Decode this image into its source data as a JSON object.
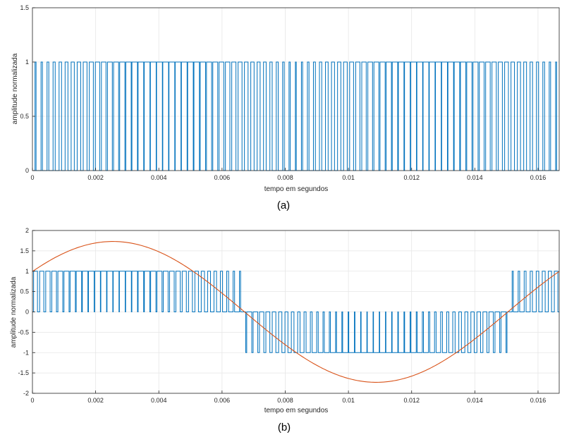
{
  "chart_data": [
    {
      "type": "line",
      "caption": "(a)",
      "xlabel": "tempo em segundos",
      "ylabel": "amplitude normalizada",
      "xlim": [
        0,
        0.01667
      ],
      "ylim": [
        0,
        1.5
      ],
      "xticks": [
        "0",
        "0.002",
        "0.004",
        "0.006",
        "0.008",
        "0.01",
        "0.012",
        "0.014",
        "0.016"
      ],
      "yticks": [
        "0",
        "0.5",
        "1",
        "1.5"
      ],
      "grid": true,
      "series": [
        {
          "kind": "unipolar PWM pulse train (0/1)",
          "color": "#0072BD",
          "carrier_periods": 85,
          "waveform": "0 to 1 pulses whose duty cycle follows |sin(2π·60·t)|"
        }
      ]
    },
    {
      "type": "line",
      "caption": "(b)",
      "xlabel": "tempo em segundos",
      "ylabel": "amplitude normalizada",
      "xlim": [
        0,
        0.01667
      ],
      "ylim": [
        -2,
        2
      ],
      "xticks": [
        "0",
        "0.002",
        "0.004",
        "0.006",
        "0.008",
        "0.01",
        "0.012",
        "0.014",
        "0.016"
      ],
      "yticks": [
        "-2",
        "-1.5",
        "-1",
        "-0.5",
        "0",
        "0.5",
        "1",
        "1.5",
        "2"
      ],
      "grid": true,
      "series": [
        {
          "kind": "bipolar PWM pulse train (0/±1)",
          "color": "#0072BD",
          "carrier_periods": 85,
          "waveform": "pulses to +1 for positive half-cycle, to -1 for negative half-cycle"
        },
        {
          "kind": "reference sine",
          "color": "#D95319",
          "amplitude": 1.73,
          "frequency_hz": 60,
          "phase_deg": 35,
          "x": [
            0,
            0.0028,
            0.0069,
            0.0111,
            0.0153,
            0.01667
          ],
          "y": [
            0.99,
            1.73,
            0.0,
            -1.73,
            0.0,
            0.99
          ]
        }
      ]
    }
  ]
}
